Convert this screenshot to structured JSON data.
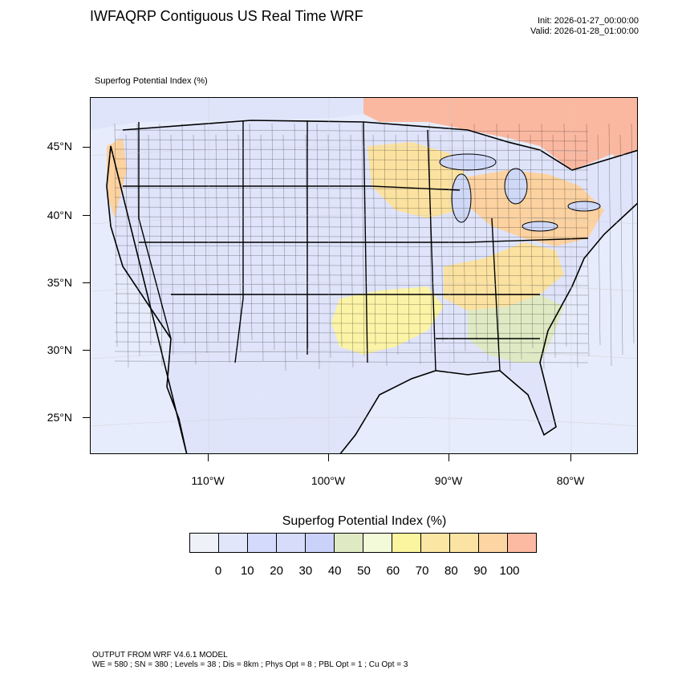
{
  "header": {
    "title": "IWFAQRP Contiguous US Real Time WRF",
    "init": "Init: 2026-01-27_00:00:00",
    "valid": "Valid: 2026-01-28_01:00:00"
  },
  "field_label": "Superfog Potential Index   (%)",
  "map": {
    "lat_labels": [
      "45°N",
      "40°N",
      "35°N",
      "30°N",
      "25°N"
    ],
    "lon_labels": [
      "110°W",
      "100°W",
      "90°W",
      "80°W"
    ],
    "colors": {
      "ocean": "#e6ecfb",
      "land_low": "#dfe4fb",
      "land_mid": "#cdd5f7",
      "green": "#dfe9c4",
      "yellow": "#fbf3a6",
      "tan": "#fbe2a1",
      "orange": "#fcd2a1",
      "salmon": "#fbb8a1",
      "border": "#000000"
    }
  },
  "legend": {
    "title": "Superfog Potential Index  (%)",
    "tick_labels": [
      "0",
      "10",
      "20",
      "30",
      "40",
      "50",
      "60",
      "70",
      "80",
      "90",
      "100"
    ],
    "colors": [
      "#eef1f8",
      "#e2e6fb",
      "#d4dafb",
      "#d6dcfa",
      "#cbd2fa",
      "#dfe9c4",
      "#f3fad9",
      "#fbf59f",
      "#fbe6a3",
      "#fbe3a3",
      "#fcd5a3",
      "#fbbaa1"
    ]
  },
  "footer": {
    "line1": "OUTPUT FROM WRF V4.6.1 MODEL",
    "line2": "WE = 580 ; SN = 380 ; Levels = 38 ; Dis = 8km ; Phys Opt = 8 ; PBL Opt = 1 ; Cu Opt = 3"
  }
}
